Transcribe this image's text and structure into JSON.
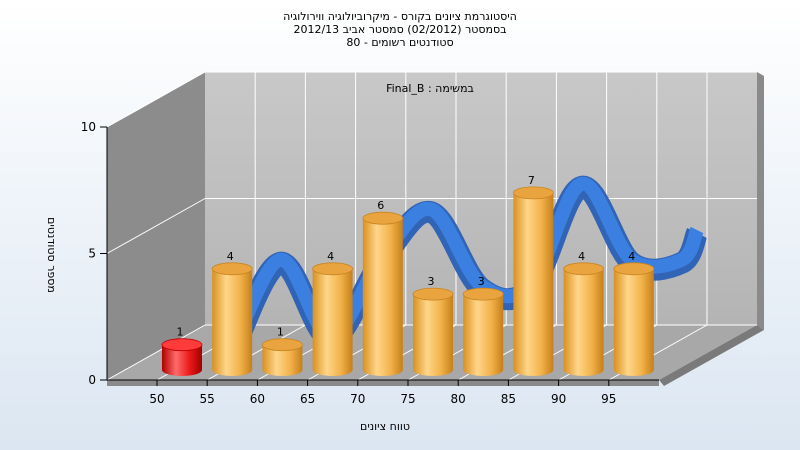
{
  "chart_data": {
    "type": "bar",
    "title_lines": [
      "היסטוגרמת ציונים בקורס - מיקרוביולוגיה ווירולוגיה",
      "בסמסטר  (02/2012)  סמסטר אביב 2012/13",
      "סטודנטים רשומים - 80"
    ],
    "annotation": "Final_B : במשימה",
    "xlabel": "טווח ציונים",
    "ylabel": "מספר סטודנטים",
    "x_ticks": [
      "50",
      "55",
      "60",
      "65",
      "70",
      "75",
      "80",
      "85",
      "90",
      "95"
    ],
    "y_ticks": [
      "0",
      "5",
      "10"
    ],
    "ylim": [
      0,
      10
    ],
    "values": [
      1,
      4,
      1,
      4,
      6,
      3,
      3,
      7,
      4,
      4
    ],
    "value_labels": [
      "1",
      "4",
      "1",
      "4",
      "6",
      "3",
      "3",
      "7",
      "4",
      "4"
    ],
    "highlight_index": 0,
    "colors": {
      "bar": "#f0b24a",
      "bar_highlight": "#e01010",
      "curve": "#2f6fd0",
      "floor": "#a9a9a9",
      "back_wall": "#bdbdbd",
      "side_wall": "#8a8a8a"
    }
  }
}
